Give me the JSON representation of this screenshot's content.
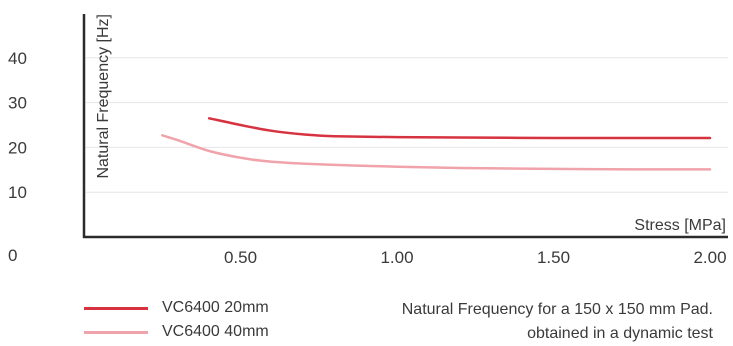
{
  "chart_data": {
    "type": "line",
    "xlabel": "Stress [MPa]",
    "ylabel": "Natural Frequency [Hz]",
    "xlim": [
      0,
      2.0
    ],
    "ylim": [
      0,
      50
    ],
    "x_ticks": [
      "0.50",
      "1.00",
      "1.50",
      "2.00"
    ],
    "y_ticks": [
      "40",
      "30",
      "20",
      "10",
      "0"
    ],
    "grid": true,
    "series": [
      {
        "name": "VC6400 20mm",
        "color": "#d7323f",
        "points": [
          [
            0.4,
            26.5
          ],
          [
            0.5,
            25.0
          ],
          [
            0.6,
            23.7
          ],
          [
            0.7,
            22.9
          ],
          [
            0.8,
            22.5
          ],
          [
            1.0,
            22.3
          ],
          [
            1.2,
            22.2
          ],
          [
            1.5,
            22.1
          ],
          [
            1.8,
            22.1
          ],
          [
            2.0,
            22.1
          ]
        ]
      },
      {
        "name": "VC6400 40mm",
        "color": "#f0a3aa",
        "points": [
          [
            0.25,
            22.7
          ],
          [
            0.3,
            21.6
          ],
          [
            0.4,
            19.2
          ],
          [
            0.5,
            17.7
          ],
          [
            0.6,
            16.8
          ],
          [
            0.8,
            16.1
          ],
          [
            1.0,
            15.7
          ],
          [
            1.2,
            15.4
          ],
          [
            1.5,
            15.2
          ],
          [
            1.8,
            15.1
          ],
          [
            2.0,
            15.1
          ]
        ]
      }
    ]
  },
  "note": {
    "line1": "Natural Frequency for a 150 x 150 mm Pad.",
    "line2": "obtained in a dynamic test"
  }
}
